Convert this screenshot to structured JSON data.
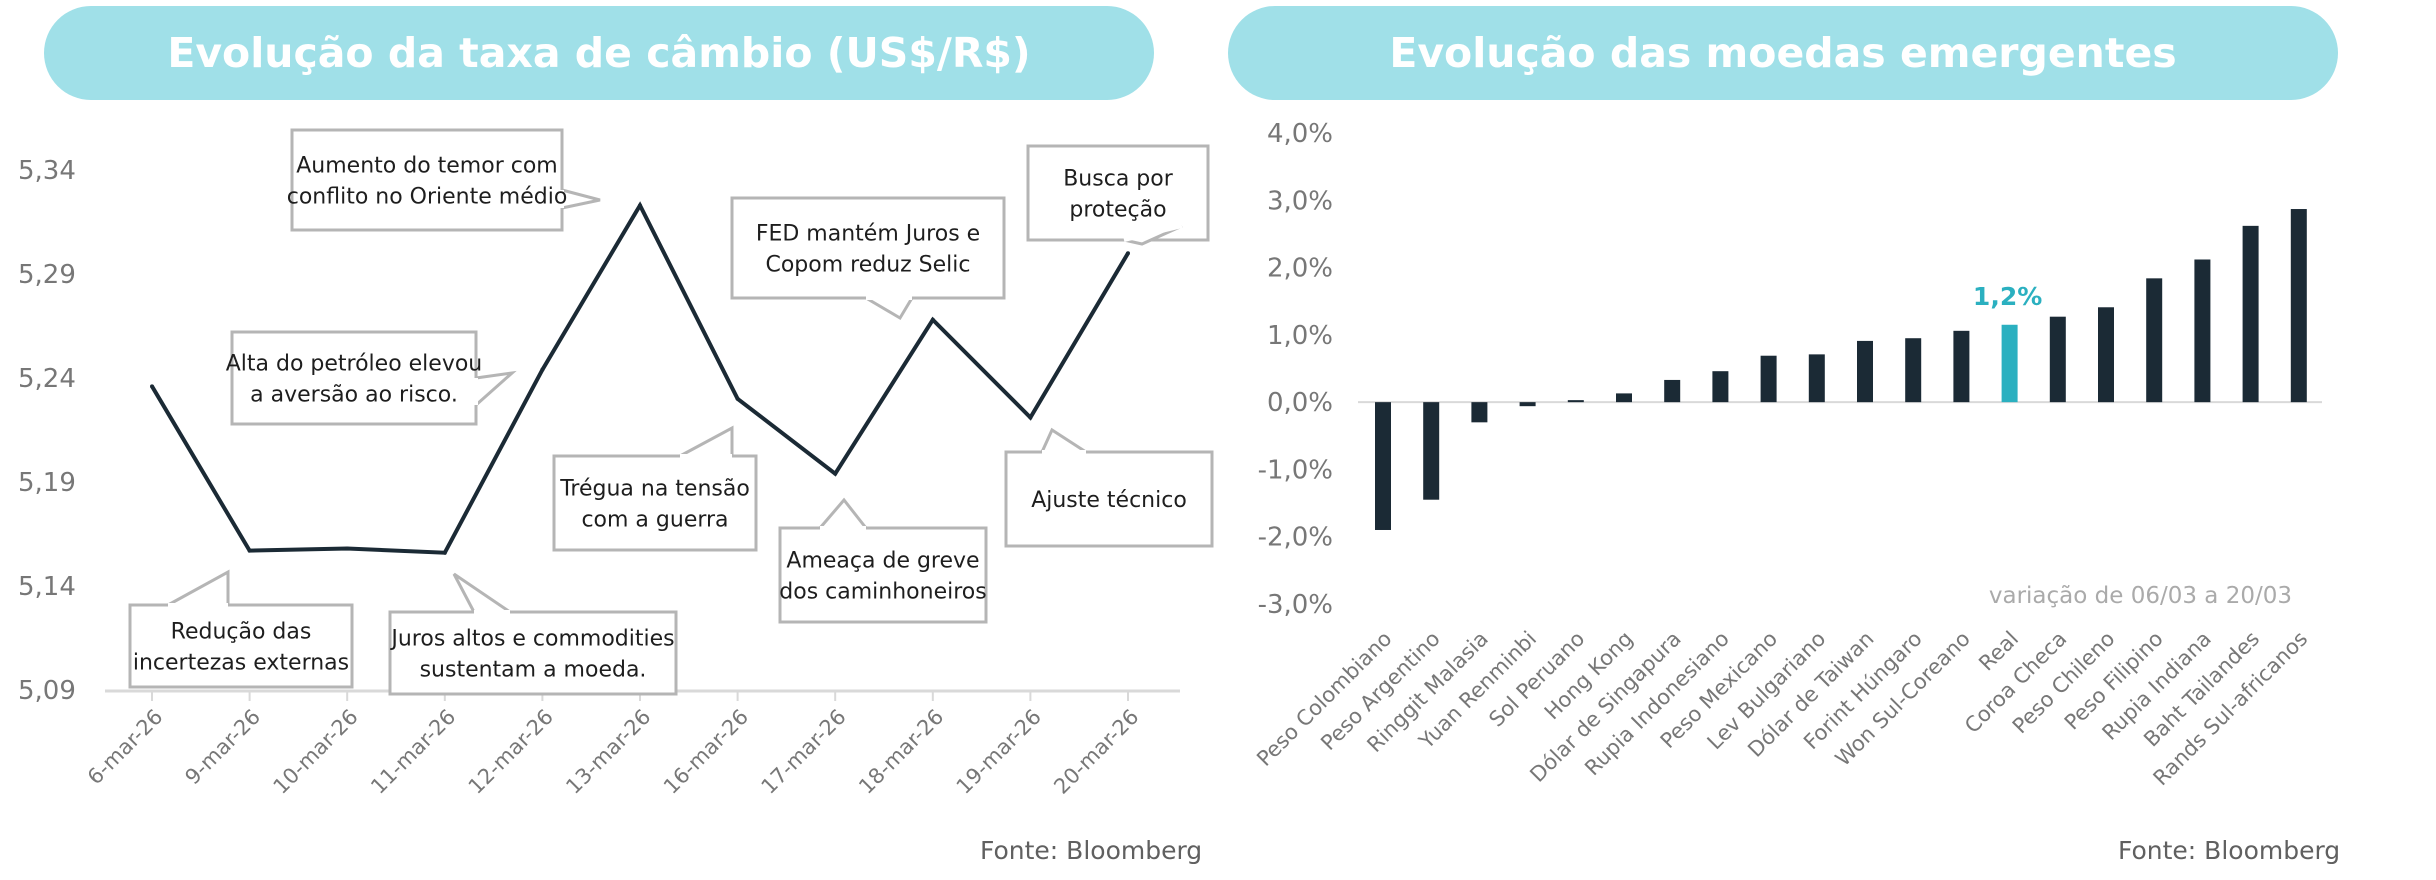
{
  "left": {
    "title": "Evolução da taxa de câmbio (US$/R$)",
    "source": "Fonte: Bloomberg",
    "callouts": [
      {
        "lines": [
          "Aumento do temor com",
          "conflito no Oriente médio"
        ]
      },
      {
        "lines": [
          "Alta do petróleo elevou",
          "a aversão ao risco."
        ]
      },
      {
        "lines": [
          "Redução das",
          "incertezas externas"
        ]
      },
      {
        "lines": [
          "Juros altos e commodities",
          "sustentam a moeda."
        ]
      },
      {
        "lines": [
          "Trégua na tensão",
          "com a guerra"
        ]
      },
      {
        "lines": [
          "Ameaça de greve",
          "dos caminhoneiros"
        ]
      },
      {
        "lines": [
          "FED mantém Juros e",
          "Copom reduz Selic"
        ]
      },
      {
        "lines": [
          "Ajuste técnico"
        ]
      },
      {
        "lines": [
          "Busca por",
          "proteção"
        ]
      }
    ]
  },
  "right": {
    "title": "Evolução das moedas emergentes",
    "source": "Fonte: Bloomberg",
    "note": "variação de 06/03 a 20/03",
    "highlight_label": "1,2%"
  },
  "colors": {
    "banner": "#a0e0e8",
    "line": "#1b2a35",
    "bar": "#1b2a35",
    "highlight": "#2bb0c0",
    "callout_border": "#b5b5b5"
  },
  "chart_data": [
    {
      "type": "line",
      "title": "Evolução da taxa de câmbio (US$/R$)",
      "x": [
        "6-mar-26",
        "9-mar-26",
        "10-mar-26",
        "11-mar-26",
        "12-mar-26",
        "13-mar-26",
        "16-mar-26",
        "17-mar-26",
        "18-mar-26",
        "19-mar-26",
        "20-mar-26"
      ],
      "values": [
        5.236,
        5.157,
        5.158,
        5.156,
        5.244,
        5.323,
        5.23,
        5.194,
        5.268,
        5.221,
        5.3
      ],
      "yticks": [
        "5,09",
        "5,14",
        "5,19",
        "5,24",
        "5,29",
        "5,34"
      ],
      "ylim": [
        5.09,
        5.34
      ],
      "grid": false
    },
    {
      "type": "bar",
      "title": "Evolução das moedas emergentes",
      "categories": [
        "Peso Colombiano",
        "Peso Argentino",
        "Ringgit Malasia",
        "Yuan Renminbi",
        "Sol Peruano",
        "Hong Kong",
        "Dólar de Singapura",
        "Rupia Indonesiano",
        "Peso Mexicano",
        "Lev Bulgariano",
        "Dólar de Taiwan",
        "Forint Húngaro",
        "Won Sul-Coreano",
        "Real",
        "Coroa Checa",
        "Peso Chileno",
        "Peso Filipino",
        "Rupia Indiana",
        "Baht Tailandes",
        "Rands Sul-africanos"
      ],
      "values": [
        -1.9,
        -1.45,
        -0.3,
        -0.06,
        0.0,
        0.13,
        0.33,
        0.46,
        0.69,
        0.71,
        0.91,
        0.95,
        1.06,
        1.15,
        1.27,
        1.41,
        1.84,
        2.12,
        2.62,
        2.87
      ],
      "yticks": [
        "-3,0%",
        "-2,0%",
        "-1,0%",
        "0,0%",
        "1,0%",
        "2,0%",
        "3,0%",
        "4,0%"
      ],
      "ylim": [
        -3.0,
        4.0
      ],
      "highlight": "Real",
      "grid": false
    }
  ]
}
